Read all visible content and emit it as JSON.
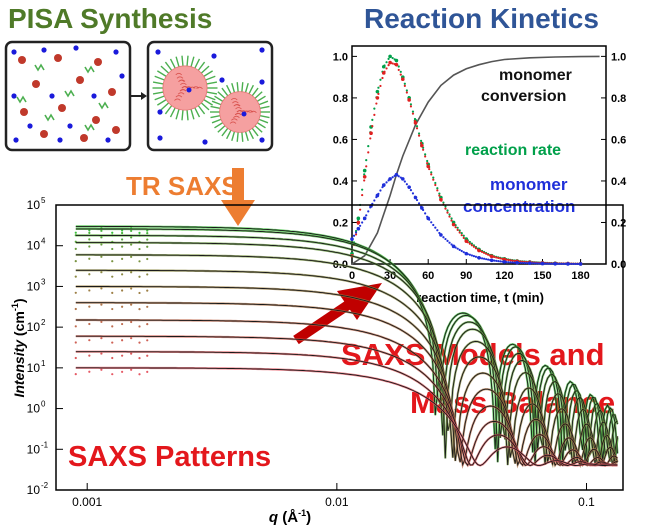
{
  "headings": {
    "pisa": "PISA Synthesis",
    "kinetics": "Reaction Kinetics",
    "tr_saxs": "TR SAXS",
    "saxs_patterns": "SAXS Patterns",
    "models_line1": "SAXS Models and",
    "models_line2": "Mass Balance"
  },
  "colors": {
    "pisa_heading": "#4f7a28",
    "kinetics_heading": "#2f5597",
    "tr_saxs": "#ed7d31",
    "red_text": "#e3171c",
    "big_arrow": "#c00000",
    "orange_arrow": "#ed7d31",
    "conversion": "#555555",
    "rate": "#00a04a",
    "concentration": "#1f2fd9",
    "rate_red": "#e02020",
    "particle_red": "#c0392b",
    "particle_blue": "#1a1adb",
    "stabilizer_green": "#4caf50",
    "micelle_core": "#f5a0a0"
  },
  "pisa_panel": {
    "left_box_icons": [
      "red-monomer-dots",
      "blue-dots",
      "green-chains"
    ],
    "right_box_icons": [
      "micelle-core",
      "stabilizer-corona",
      "blue-dots"
    ]
  },
  "chart_data": [
    {
      "type": "line",
      "title": "",
      "xlabel": "reaction time, t (min)",
      "ylabel": "",
      "xlim": [
        0,
        200
      ],
      "ylim": [
        0,
        1.05
      ],
      "x_ticks": [
        0,
        30,
        60,
        90,
        120,
        150,
        180
      ],
      "y_ticks": [
        0.0,
        0.2,
        0.4,
        0.6,
        0.8,
        1.0
      ],
      "y2_ticks": [
        0.0,
        0.2,
        0.4,
        0.6,
        0.8,
        1.0
      ],
      "grid": false,
      "annotations": [
        {
          "text_lines": [
            "monomer",
            "conversion"
          ],
          "series": "conversion"
        },
        {
          "text_lines": [
            "reaction rate"
          ],
          "series": "rate"
        },
        {
          "text_lines": [
            "monomer",
            "concentration"
          ],
          "series": "concentration"
        }
      ],
      "series": [
        {
          "key": "conversion",
          "style": "line",
          "x": [
            0,
            10,
            20,
            30,
            35,
            40,
            50,
            60,
            70,
            80,
            90,
            100,
            110,
            120,
            140,
            160,
            180,
            195
          ],
          "y": [
            0.0,
            0.04,
            0.15,
            0.33,
            0.43,
            0.52,
            0.67,
            0.78,
            0.86,
            0.91,
            0.94,
            0.96,
            0.975,
            0.985,
            0.993,
            0.997,
            0.999,
            1.0
          ]
        },
        {
          "key": "rate",
          "style": "dots",
          "x": [
            0,
            5,
            10,
            15,
            20,
            25,
            30,
            35,
            40,
            45,
            50,
            55,
            60,
            70,
            80,
            90,
            100,
            110,
            120,
            130,
            140,
            150,
            160,
            170,
            180
          ],
          "y": [
            0.05,
            0.22,
            0.45,
            0.66,
            0.83,
            0.95,
            1.0,
            0.98,
            0.9,
            0.8,
            0.69,
            0.58,
            0.48,
            0.32,
            0.2,
            0.12,
            0.07,
            0.04,
            0.025,
            0.015,
            0.01,
            0.006,
            0.004,
            0.002,
            0.001
          ]
        },
        {
          "key": "rate_red",
          "style": "dots",
          "x": [
            0,
            5,
            10,
            15,
            20,
            25,
            30,
            35,
            40,
            45,
            50,
            55,
            60,
            70,
            80,
            90,
            100,
            110,
            120,
            130,
            140,
            150,
            160,
            170,
            180
          ],
          "y": [
            0.04,
            0.2,
            0.42,
            0.63,
            0.8,
            0.92,
            0.97,
            0.96,
            0.89,
            0.79,
            0.68,
            0.57,
            0.47,
            0.31,
            0.19,
            0.11,
            0.065,
            0.037,
            0.022,
            0.013,
            0.008,
            0.005,
            0.003,
            0.002,
            0.001
          ]
        },
        {
          "key": "concentration",
          "style": "dots",
          "x": [
            0,
            5,
            10,
            15,
            20,
            25,
            30,
            35,
            40,
            45,
            50,
            55,
            60,
            70,
            80,
            90,
            100,
            110,
            120,
            130,
            140,
            150,
            160,
            170,
            180
          ],
          "y": [
            0.12,
            0.17,
            0.22,
            0.28,
            0.33,
            0.38,
            0.41,
            0.43,
            0.41,
            0.37,
            0.32,
            0.27,
            0.22,
            0.14,
            0.085,
            0.05,
            0.03,
            0.018,
            0.01,
            0.006,
            0.004,
            0.002,
            0.001,
            0.0005,
            0.0002
          ]
        }
      ]
    },
    {
      "type": "line",
      "title": "",
      "xlabel_main": "q",
      "xlabel_unit": "(Å",
      "xlabel_exp": "-1",
      "xlabel_close": ")",
      "ylabel_main": "Intensity",
      "ylabel_unit": "(cm",
      "ylabel_exp": "-1",
      "ylabel_close": ")",
      "x_scale": "log",
      "y_scale": "log",
      "xlim": [
        0.00075,
        0.14
      ],
      "ylim": [
        0.01,
        100000
      ],
      "x_ticks": [
        {
          "value": 0.001,
          "label": "0.001"
        },
        {
          "value": 0.01,
          "label": "0.01"
        },
        {
          "value": 0.1,
          "label": "0.1"
        }
      ],
      "y_ticks": [
        {
          "value": 100000,
          "base": "10",
          "exp": "5"
        },
        {
          "value": 10000,
          "base": "10",
          "exp": "4"
        },
        {
          "value": 1000,
          "base": "10",
          "exp": "3"
        },
        {
          "value": 100,
          "base": "10",
          "exp": "2"
        },
        {
          "value": 10,
          "base": "10",
          "exp": "1"
        },
        {
          "value": 1,
          "base": "10",
          "exp": "0"
        },
        {
          "value": 0.1,
          "base": "10",
          "exp": "-1"
        },
        {
          "value": 0.01,
          "base": "10",
          "exp": "-2"
        }
      ],
      "grid": false,
      "patterns": [
        {
          "i0": 30000,
          "rg": 180,
          "color": "#3cbf3c"
        },
        {
          "i0": 26000,
          "rg": 175,
          "color": "#4ab33d"
        },
        {
          "i0": 18000,
          "rg": 170,
          "color": "#5aa83e"
        },
        {
          "i0": 12000,
          "rg": 165,
          "color": "#6a9e40"
        },
        {
          "i0": 6000,
          "rg": 160,
          "color": "#7a9442"
        },
        {
          "i0": 2500,
          "rg": 155,
          "color": "#8c8a44"
        },
        {
          "i0": 1000,
          "rg": 150,
          "color": "#9e8047"
        },
        {
          "i0": 400,
          "rg": 145,
          "color": "#b0764b"
        },
        {
          "i0": 150,
          "rg": 140,
          "color": "#c06c50"
        },
        {
          "i0": 60,
          "rg": 135,
          "color": "#cf6256"
        },
        {
          "i0": 25,
          "rg": 130,
          "color": "#dc5a5c"
        },
        {
          "i0": 10,
          "rg": 120,
          "color": "#e65a66"
        }
      ],
      "background": 0.04
    }
  ]
}
